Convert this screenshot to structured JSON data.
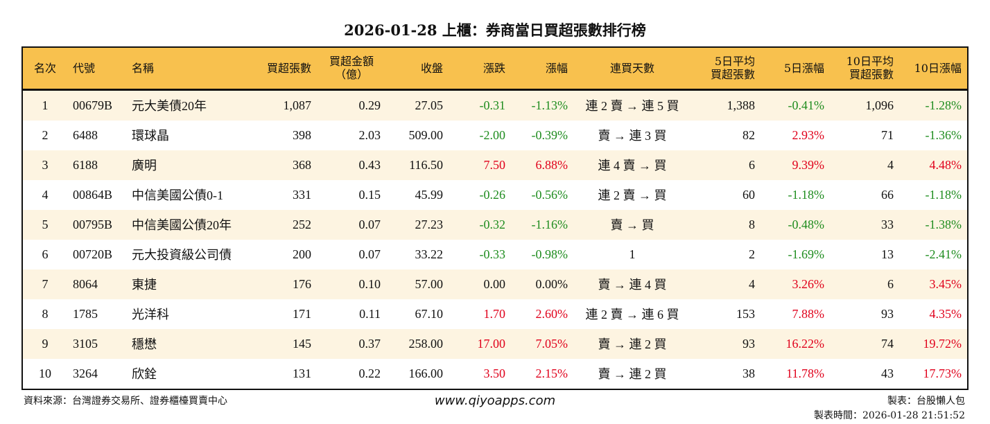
{
  "title": "2026-01-28 上櫃：券商當日買超張數排行榜",
  "colors": {
    "header_bg": "#F8C14E",
    "row_alt_bg": "#FDF4E1",
    "up": "#E0001B",
    "down": "#1E8C1E"
  },
  "columns": [
    "名次",
    "代號",
    "名稱",
    "買超張數",
    "買超金額\n（億）",
    "收盤",
    "漲跌",
    "漲幅",
    "連買天數",
    "5日平均\n買超張數",
    "5日漲幅",
    "10日平均\n買超張數",
    "10日漲幅"
  ],
  "rows": [
    [
      "1",
      "00679B",
      "元大美債20年",
      "1,087",
      "0.29",
      "27.05",
      "-0.31",
      "-1.13%",
      "連 2 賣 → 連 5 買",
      "1,388",
      "-0.41%",
      "1,096",
      "-1.28%"
    ],
    [
      "2",
      "6488",
      "環球晶",
      "398",
      "2.03",
      "509.00",
      "-2.00",
      "-0.39%",
      "賣 → 連 3 買",
      "82",
      "2.93%",
      "71",
      "-1.36%"
    ],
    [
      "3",
      "6188",
      "廣明",
      "368",
      "0.43",
      "116.50",
      "7.50",
      "6.88%",
      "連 4 賣 → 買",
      "6",
      "9.39%",
      "4",
      "4.48%"
    ],
    [
      "4",
      "00864B",
      "中信美國公債0-1",
      "331",
      "0.15",
      "45.99",
      "-0.26",
      "-0.56%",
      "連 2 賣 → 買",
      "60",
      "-1.18%",
      "66",
      "-1.18%"
    ],
    [
      "5",
      "00795B",
      "中信美國公債20年",
      "252",
      "0.07",
      "27.23",
      "-0.32",
      "-1.16%",
      "賣 → 買",
      "8",
      "-0.48%",
      "33",
      "-1.38%"
    ],
    [
      "6",
      "00720B",
      "元大投資級公司債",
      "200",
      "0.07",
      "33.22",
      "-0.33",
      "-0.98%",
      "1",
      "2",
      "-1.69%",
      "13",
      "-2.41%"
    ],
    [
      "7",
      "8064",
      "東捷",
      "176",
      "0.10",
      "57.00",
      "0.00",
      "0.00%",
      "賣 → 連 4 買",
      "4",
      "3.26%",
      "6",
      "3.45%"
    ],
    [
      "8",
      "1785",
      "光洋科",
      "171",
      "0.11",
      "67.10",
      "1.70",
      "2.60%",
      "連 2 賣 → 連 6 買",
      "153",
      "7.88%",
      "93",
      "4.35%"
    ],
    [
      "9",
      "3105",
      "穩懋",
      "145",
      "0.37",
      "258.00",
      "17.00",
      "7.05%",
      "賣 → 連 2 買",
      "93",
      "16.22%",
      "74",
      "19.72%"
    ],
    [
      "10",
      "3264",
      "欣銓",
      "131",
      "0.22",
      "166.00",
      "3.50",
      "2.15%",
      "賣 → 連 2 買",
      "38",
      "11.78%",
      "43",
      "17.73%"
    ]
  ],
  "footer": {
    "source": "資料來源：台灣證券交易所、證券櫃檯買賣中心",
    "website": "www.qiyoapps.com",
    "maker": "製表：台股懶人包",
    "time": "製表時間：2026-01-28 21:51:52"
  }
}
